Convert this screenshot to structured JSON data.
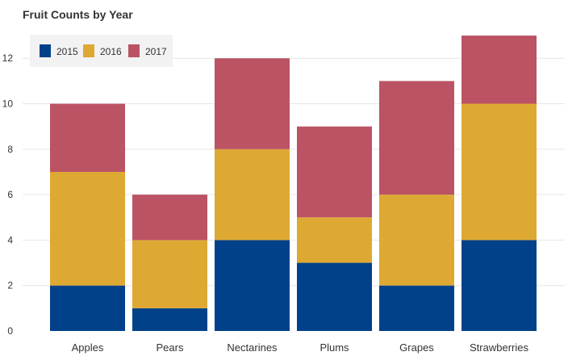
{
  "chart_data": {
    "type": "bar",
    "stacked": true,
    "title": "Fruit Counts by Year",
    "xlabel": "",
    "ylabel": "",
    "categories": [
      "Apples",
      "Pears",
      "Nectarines",
      "Plums",
      "Grapes",
      "Strawberries"
    ],
    "series": [
      {
        "name": "2015",
        "color": "#00418A",
        "values": [
          2,
          1,
          4,
          3,
          2,
          4
        ]
      },
      {
        "name": "2016",
        "color": "#DDA933",
        "values": [
          5,
          3,
          4,
          2,
          4,
          6
        ]
      },
      {
        "name": "2017",
        "color": "#BB5364",
        "values": [
          3,
          2,
          4,
          4,
          5,
          3
        ]
      }
    ],
    "ylim": [
      0,
      13.5
    ],
    "yticks": [
      0,
      2,
      4,
      6,
      8,
      10,
      12
    ],
    "grid": true,
    "legend_position": "top-left"
  }
}
